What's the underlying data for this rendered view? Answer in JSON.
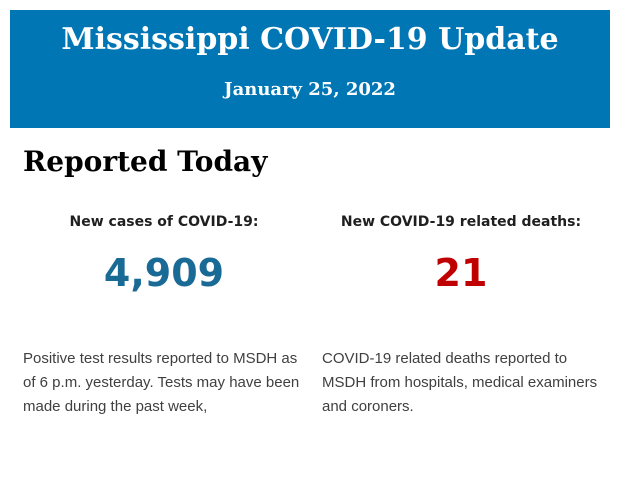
{
  "header": {
    "title": "Mississippi COVID-19 Update",
    "date": "January 25, 2022",
    "bg_color": "#0076b4",
    "text_color": "#ffffff"
  },
  "main": {
    "heading": "Reported Today",
    "stats": [
      {
        "label": "New cases of COVID-19:",
        "value": "4,909",
        "value_color": "#1a6a96",
        "description": "Positive test results reported to MSDH as of 6 p.m. yesterday. Tests may have been made during the past week,"
      },
      {
        "label": "New COVID-19 related deaths:",
        "value": "21",
        "value_color": "#c00000",
        "description": "COVID-19 related deaths reported to MSDH from hospitals, medical examiners and coroners."
      }
    ]
  }
}
